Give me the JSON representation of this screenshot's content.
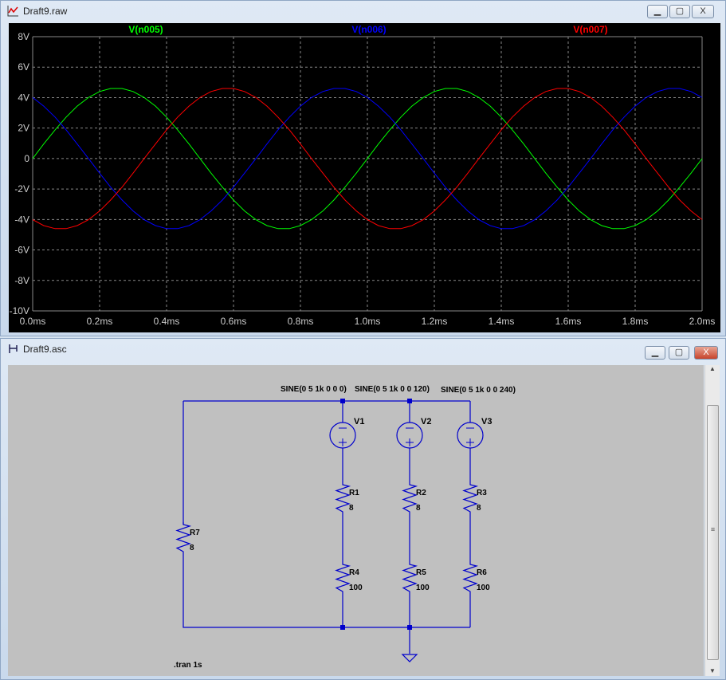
{
  "plot_window": {
    "title": "Draft9.raw",
    "icon": "waveform-icon"
  },
  "schematic_window": {
    "title": "Draft9.asc",
    "icon": "schematic-icon"
  },
  "window_buttons": {
    "minimize": "▁",
    "maximize": "▢",
    "close": "X"
  },
  "chart_data": {
    "type": "line",
    "xlabel": "",
    "ylabel": "",
    "xlim": [
      0,
      2
    ],
    "ylim": [
      -10,
      8
    ],
    "x_ticks": [
      "0.0ms",
      "0.2ms",
      "0.4ms",
      "0.6ms",
      "0.8ms",
      "1.0ms",
      "1.2ms",
      "1.4ms",
      "1.6ms",
      "1.8ms",
      "2.0ms"
    ],
    "y_ticks": [
      "8V",
      "6V",
      "4V",
      "2V",
      "0",
      "-2V",
      "-4V",
      "-6V",
      "-8V",
      "-10V"
    ],
    "y_tick_values": [
      8,
      6,
      4,
      2,
      0,
      -2,
      -4,
      -6,
      -8,
      -10
    ],
    "x_tick_values": [
      0,
      0.2,
      0.4,
      0.6,
      0.8,
      1.0,
      1.2,
      1.4,
      1.6,
      1.8,
      2.0
    ],
    "grid": true,
    "background": "#000000",
    "x": [
      0,
      0.033,
      0.067,
      0.1,
      0.133,
      0.167,
      0.2,
      0.233,
      0.267,
      0.3,
      0.333,
      0.367,
      0.4,
      0.433,
      0.467,
      0.5,
      0.533,
      0.567,
      0.6,
      0.633,
      0.667,
      0.7,
      0.733,
      0.767,
      0.8,
      0.833,
      0.867,
      0.9,
      0.933,
      0.967,
      1.0,
      1.033,
      1.067,
      1.1,
      1.133,
      1.167,
      1.2,
      1.233,
      1.267,
      1.3,
      1.333,
      1.367,
      1.4,
      1.433,
      1.467,
      1.5,
      1.533,
      1.567,
      1.6,
      1.633,
      1.667,
      1.7,
      1.733,
      1.767,
      1.8,
      1.833,
      1.867,
      1.9,
      1.933,
      1.967,
      2.0
    ],
    "series": [
      {
        "name": "V(n005)",
        "color": "#00ff00",
        "values": [
          0,
          0.96,
          1.88,
          2.72,
          3.44,
          4.01,
          4.4,
          4.6,
          4.6,
          4.4,
          4.01,
          3.44,
          2.72,
          1.88,
          0.96,
          0,
          -0.96,
          -1.88,
          -2.72,
          -3.44,
          -4.01,
          -4.4,
          -4.6,
          -4.6,
          -4.4,
          -4.01,
          -3.44,
          -2.72,
          -1.88,
          -0.96,
          0,
          0.96,
          1.88,
          2.72,
          3.44,
          4.01,
          4.4,
          4.6,
          4.6,
          4.4,
          4.01,
          3.44,
          2.72,
          1.88,
          0.96,
          0,
          -0.96,
          -1.88,
          -2.72,
          -3.44,
          -4.01,
          -4.4,
          -4.6,
          -4.6,
          -4.4,
          -4.01,
          -3.44,
          -2.72,
          -1.88,
          -0.96,
          0
        ]
      },
      {
        "name": "V(n006)",
        "color": "#0000ff",
        "values": [
          4.01,
          3.44,
          2.72,
          1.88,
          0.96,
          0,
          -0.96,
          -1.88,
          -2.72,
          -3.44,
          -4.01,
          -4.4,
          -4.6,
          -4.6,
          -4.4,
          -4.01,
          -3.44,
          -2.72,
          -1.88,
          -0.96,
          0,
          0.96,
          1.88,
          2.72,
          3.44,
          4.01,
          4.4,
          4.6,
          4.6,
          4.4,
          4.01,
          3.44,
          2.72,
          1.88,
          0.96,
          0,
          -0.96,
          -1.88,
          -2.72,
          -3.44,
          -4.01,
          -4.4,
          -4.6,
          -4.6,
          -4.4,
          -4.01,
          -3.44,
          -2.72,
          -1.88,
          -0.96,
          0,
          0.96,
          1.88,
          2.72,
          3.44,
          4.01,
          4.4,
          4.6,
          4.6,
          4.4,
          4.01
        ]
      },
      {
        "name": "V(n007)",
        "color": "#ff0000",
        "values": [
          -4.01,
          -4.4,
          -4.6,
          -4.6,
          -4.4,
          -4.01,
          -3.44,
          -2.72,
          -1.88,
          -0.96,
          0,
          0.96,
          1.88,
          2.72,
          3.44,
          4.01,
          4.4,
          4.6,
          4.6,
          4.4,
          4.01,
          3.44,
          2.72,
          1.88,
          0.96,
          0,
          -0.96,
          -1.88,
          -2.72,
          -3.44,
          -4.01,
          -4.4,
          -4.6,
          -4.6,
          -4.4,
          -4.01,
          -3.44,
          -2.72,
          -1.88,
          -0.96,
          0,
          0.96,
          1.88,
          2.72,
          3.44,
          4.01,
          4.4,
          4.6,
          4.6,
          4.4,
          4.01,
          3.44,
          2.72,
          1.88,
          0.96,
          0,
          -0.96,
          -1.88,
          -2.72,
          -3.44,
          -4.01
        ]
      }
    ]
  },
  "schematic": {
    "wire_color": "#0000cc",
    "sources": [
      {
        "name": "V1",
        "value": "SINE(0 5 1k 0 0 0)"
      },
      {
        "name": "V2",
        "value": "SINE(0 5 1k 0 0 120)"
      },
      {
        "name": "V3",
        "value": "SINE(0 5 1k 0 0 240)"
      }
    ],
    "resistors": [
      {
        "name": "R1",
        "value": "8"
      },
      {
        "name": "R2",
        "value": "8"
      },
      {
        "name": "R3",
        "value": "8"
      },
      {
        "name": "R4",
        "value": "100"
      },
      {
        "name": "R5",
        "value": "100"
      },
      {
        "name": "R6",
        "value": "100"
      },
      {
        "name": "R7",
        "value": "8"
      }
    ],
    "directive": ".tran 1s"
  }
}
